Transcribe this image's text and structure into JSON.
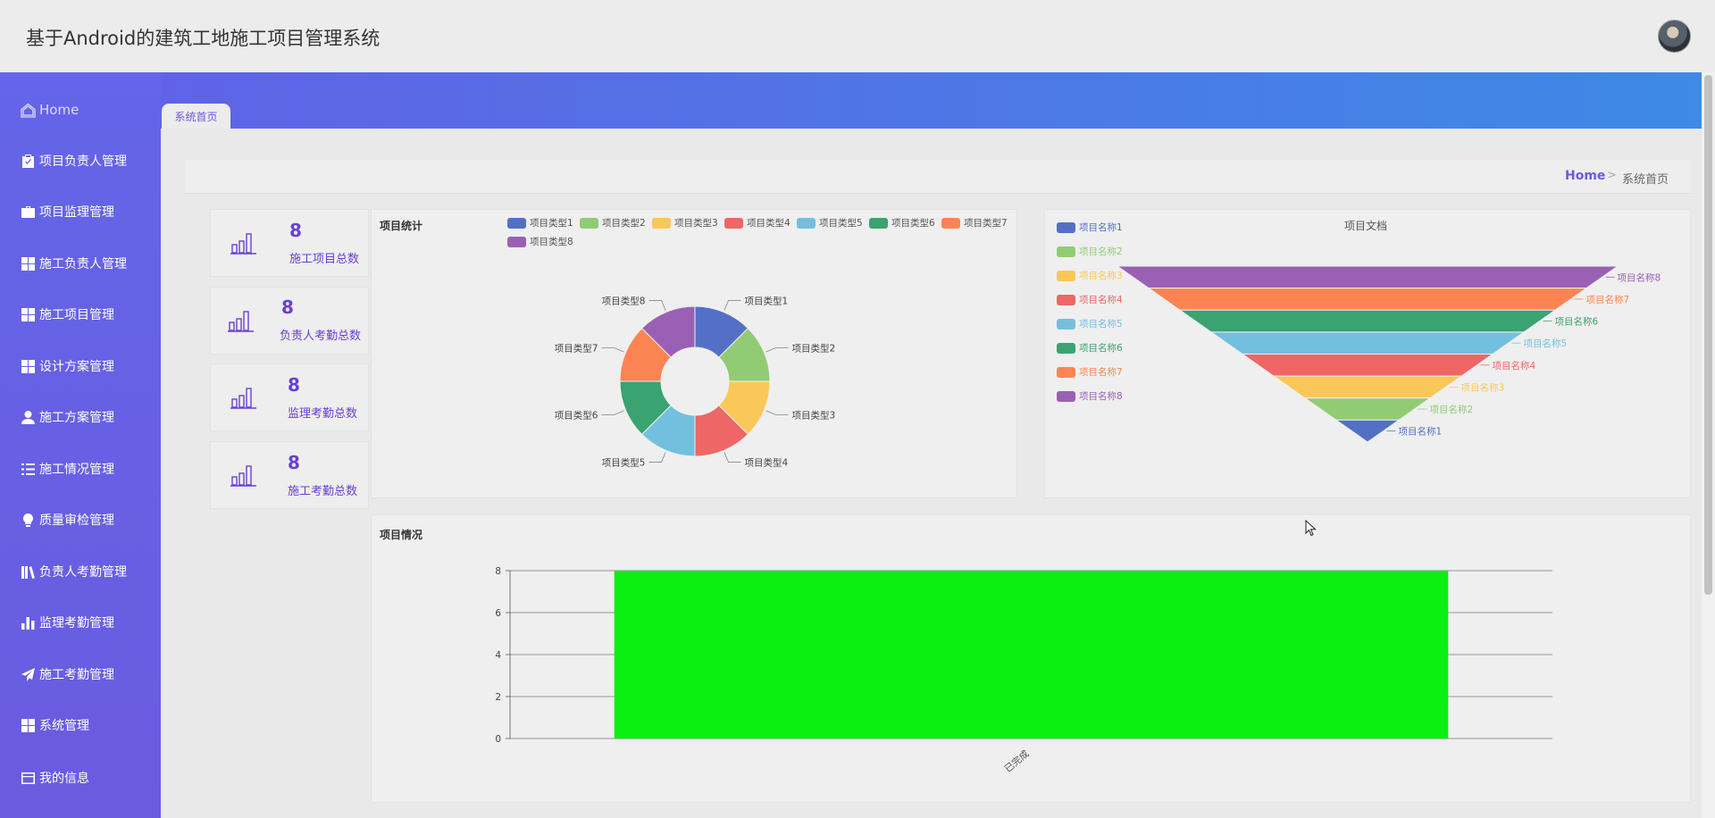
{
  "app": {
    "title": "基于Android的建筑工地施工项目管理系统"
  },
  "sidebar": {
    "items": [
      {
        "label": "Home",
        "icon": "home-icon"
      },
      {
        "label": "项目负责人管理",
        "icon": "clipboard-check-icon"
      },
      {
        "label": "项目监理管理",
        "icon": "briefcase-icon"
      },
      {
        "label": "施工负责人管理",
        "icon": "grid-icon"
      },
      {
        "label": "施工项目管理",
        "icon": "grid-icon"
      },
      {
        "label": "设计方案管理",
        "icon": "grid-icon"
      },
      {
        "label": "施工方案管理",
        "icon": "user-icon"
      },
      {
        "label": "施工情况管理",
        "icon": "list-icon"
      },
      {
        "label": "质量审检管理",
        "icon": "bulb-icon"
      },
      {
        "label": "负责人考勤管理",
        "icon": "library-icon"
      },
      {
        "label": "监理考勤管理",
        "icon": "bar-chart-icon"
      },
      {
        "label": "施工考勤管理",
        "icon": "paper-plane-icon"
      },
      {
        "label": "系统管理",
        "icon": "grid-icon"
      },
      {
        "label": "我的信息",
        "icon": "id-card-icon"
      }
    ]
  },
  "tabs": [
    {
      "label": "系统首页"
    }
  ],
  "breadcrumb": {
    "home": "Home",
    "separator": ">",
    "current": "系统首页"
  },
  "stats": [
    {
      "value": "8",
      "label": "施工项目总数"
    },
    {
      "value": "8",
      "label": "负责人考勤总数"
    },
    {
      "value": "8",
      "label": "监理考勤总数"
    },
    {
      "value": "8",
      "label": "施工考勤总数"
    }
  ],
  "colors": {
    "accent": "#6a5be0",
    "palette": [
      "#5470c6",
      "#91cc75",
      "#fac858",
      "#ee6666",
      "#73c0de",
      "#3ba272",
      "#fc8452",
      "#9a60b4"
    ],
    "bar": "#0bef11"
  },
  "chart_data": [
    {
      "type": "pie",
      "title": "项目统计",
      "donut": true,
      "legend_position": "top",
      "categories": [
        "项目类型1",
        "项目类型2",
        "项目类型3",
        "项目类型4",
        "项目类型5",
        "项目类型6",
        "项目类型7",
        "项目类型8"
      ],
      "values": [
        1,
        1,
        1,
        1,
        1,
        1,
        1,
        1
      ]
    },
    {
      "type": "funnel",
      "title": "项目文档",
      "legend_position": "left",
      "categories": [
        "项目名称1",
        "项目名称2",
        "项目名称3",
        "项目名称4",
        "项目名称5",
        "项目名称6",
        "项目名称7",
        "项目名称8"
      ],
      "values": [
        1,
        2,
        3,
        4,
        5,
        6,
        7,
        8
      ]
    },
    {
      "type": "bar",
      "title": "项目情况",
      "categories": [
        "已完成"
      ],
      "values": [
        8
      ],
      "ylim": [
        0,
        8
      ],
      "yticks": [
        0,
        2,
        4,
        6,
        8
      ],
      "grid": true
    }
  ]
}
